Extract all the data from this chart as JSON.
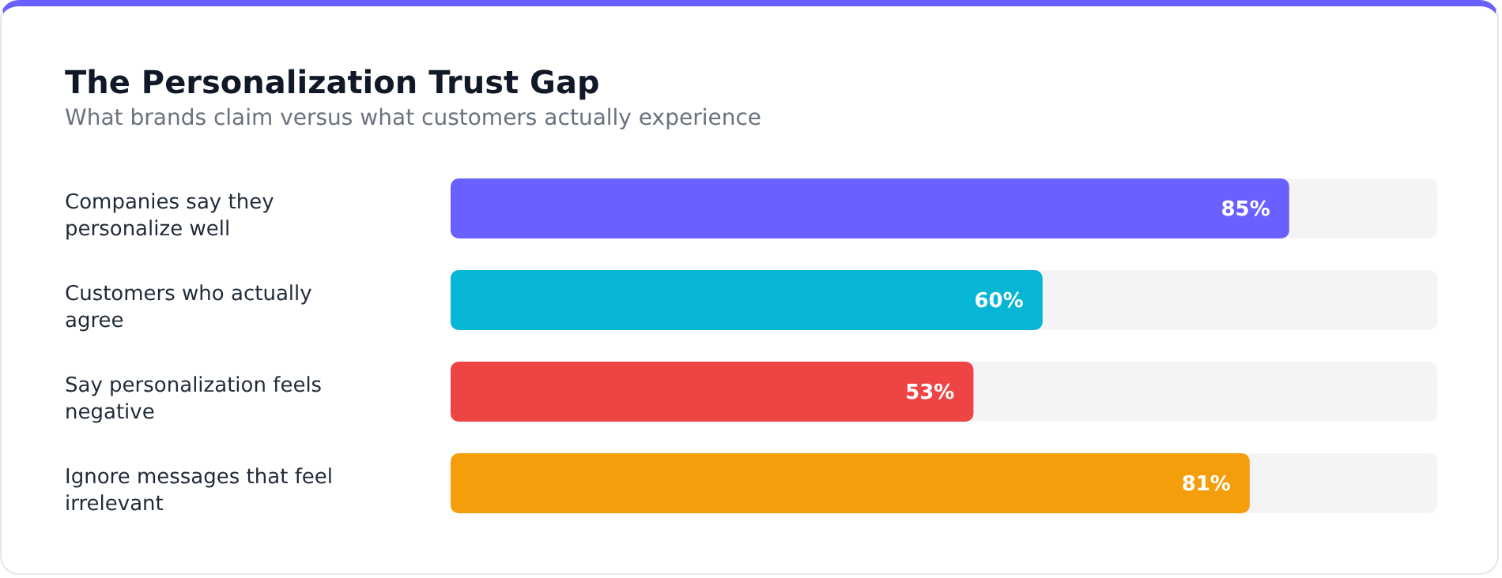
{
  "chart_data": {
    "type": "bar",
    "orientation": "horizontal",
    "title": "The Personalization Trust Gap",
    "subtitle": "What brands claim versus what customers actually experience",
    "categories": [
      "Companies say they personalize well",
      "Customers who actually agree",
      "Say personalization feels negative",
      "Ignore messages that feel irrelevant"
    ],
    "values": [
      85,
      60,
      53,
      81
    ],
    "colors": [
      "#6a5fff",
      "#06b6d4",
      "#ef4444",
      "#f59e0b"
    ],
    "value_labels": [
      "85%",
      "60%",
      "53%",
      "81%"
    ],
    "xlim": [
      0,
      100
    ],
    "tick_labels": "y",
    "grid": false
  }
}
